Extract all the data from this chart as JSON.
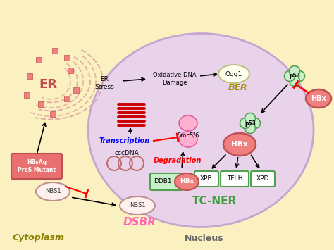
{
  "bg_color": "#FAF0C0",
  "nucleus_color": "#E8D0F0",
  "nucleus_border": "#C0A0D0",
  "cytoplasm_label": "Cytoplasm",
  "nucleus_label": "Nucleus",
  "er_label": "ER",
  "hbsag_label": "HBsAg\nPreS Mutant",
  "hbsag_color": "#E87070",
  "hbsag_border": "#C05050",
  "nbs1_cyto_color": "#FFF0F0",
  "nbs1_cyto_border": "#C09090",
  "nbs1_nuc_color": "#FFF0F0",
  "nbs1_nuc_border": "#C09090",
  "er_stress_label": "ER\nStress",
  "oxdna_label": "Oxidative DNA\nDamage",
  "ogg1_label": "Ogg1",
  "ogg1_color": "#FFFFF0",
  "ogg1_border": "#C0C080",
  "ber_label": "BER",
  "cccdna_label": "cccDNA",
  "transcription_label": "Transcription",
  "smc56_label": "Smc5/6",
  "degradation_label": "Degradation",
  "ddb1_label": "DDB1",
  "ddb1_color": "#C8F0C8",
  "ddb1_border": "#50A050",
  "hbx_color": "#F08080",
  "hbx_border": "#C05050",
  "p53_color": "#C8F0C8",
  "p53_border": "#50A050",
  "xpb_label": "XPB",
  "xpb_color": "#FFFFFF",
  "xpb_border": "#50A050",
  "tfiih_label": "TFIIH",
  "tfiih_color": "#FFFFFF",
  "tfiih_border": "#50A050",
  "xpd_label": "XPD",
  "xpd_color": "#FFFFFF",
  "xpd_border": "#50A050",
  "tcner_label": "TC-NER",
  "tcner_color": "#40A040",
  "dsbr_label": "DSBR",
  "dsbr_color": "#FF69B4",
  "arrow_color": "#000000",
  "inhibit_color": "#FF0000"
}
